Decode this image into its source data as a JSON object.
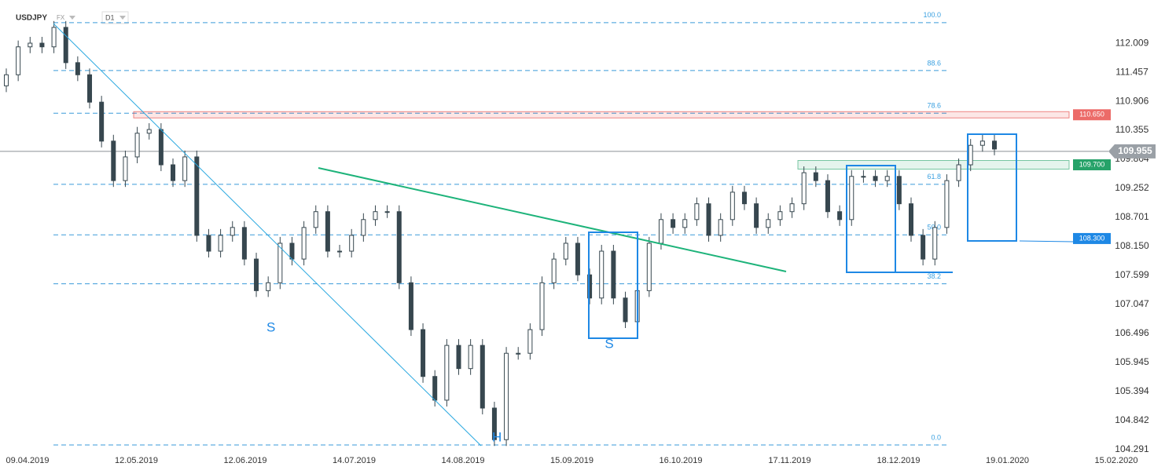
{
  "chart_data": {
    "type": "candlestick",
    "symbol": "USDJPY",
    "market": "FX",
    "interval": "D1",
    "ylim": [
      104.26,
      112.83
    ],
    "yticks": [
      112.009,
      111.457,
      110.906,
      110.355,
      109.804,
      109.252,
      108.701,
      {
        "value": 108.15,
        "label": "108.150"
      },
      107.599,
      107.047,
      106.496,
      105.945,
      105.394,
      104.842,
      104.291
    ],
    "xtick_labels": [
      "09.04.2019",
      "12.05.2019",
      "12.06.2019",
      "14.07.2019",
      "14.08.2019",
      "15.09.2019",
      "16.10.2019",
      "17.11.2019",
      "18.12.2019",
      "19.01.2020",
      "15.02.2020"
    ],
    "color": "#37474f",
    "open": [
      111.2,
      111.41,
      111.94,
      112.01,
      111.94,
      112.31,
      111.64,
      111.41,
      110.89,
      110.15,
      109.4,
      109.85,
      110.3,
      110.37,
      109.7,
      109.4,
      109.85,
      108.36,
      108.06,
      108.36,
      108.51,
      107.91,
      107.31,
      107.46,
      108.21,
      107.91,
      108.51,
      108.81,
      108.06,
      108.06,
      108.36,
      108.66,
      108.81,
      108.81,
      107.46,
      106.57,
      105.68,
      105.23,
      106.27,
      105.83,
      106.27,
      105.08,
      104.48,
      106.12,
      106.12,
      106.57,
      107.46,
      107.91,
      108.21,
      107.61,
      107.17,
      108.06,
      107.17,
      106.72,
      107.31,
      108.21,
      108.66,
      108.51,
      108.66,
      108.96,
      108.36,
      108.66,
      109.18,
      108.96,
      108.51,
      108.66,
      108.81,
      108.96,
      109.55,
      109.4,
      108.81,
      108.66,
      109.48,
      109.48,
      109.4,
      109.48,
      108.96,
      108.36,
      107.91,
      108.51,
      109.4,
      109.7,
      110.07,
      110.15
    ],
    "high": [
      111.53,
      112.06,
      112.13,
      112.13,
      112.43,
      112.43,
      111.76,
      111.53,
      111.01,
      110.27,
      109.97,
      110.42,
      110.49,
      110.49,
      109.82,
      109.97,
      109.97,
      108.48,
      108.48,
      108.63,
      108.63,
      108.03,
      107.58,
      108.33,
      108.33,
      108.63,
      108.93,
      108.93,
      108.18,
      108.48,
      108.78,
      108.93,
      108.93,
      108.93,
      107.58,
      106.69,
      105.8,
      106.39,
      106.39,
      106.39,
      106.39,
      105.2,
      106.24,
      106.24,
      106.69,
      107.58,
      108.03,
      108.33,
      108.33,
      107.73,
      108.18,
      108.18,
      107.29,
      107.43,
      108.33,
      108.78,
      108.78,
      108.78,
      109.08,
      109.08,
      108.78,
      109.3,
      109.3,
      109.08,
      108.78,
      108.93,
      109.08,
      109.67,
      109.67,
      109.52,
      108.93,
      109.6,
      109.6,
      109.6,
      109.6,
      109.6,
      109.08,
      108.48,
      108.63,
      109.52,
      109.82,
      110.19,
      110.27,
      110.27
    ],
    "low": [
      111.08,
      111.29,
      111.82,
      111.82,
      111.82,
      111.52,
      111.29,
      110.77,
      110.03,
      109.28,
      109.28,
      109.73,
      110.18,
      109.58,
      109.28,
      109.28,
      108.24,
      107.94,
      107.94,
      108.24,
      107.79,
      107.19,
      107.19,
      107.34,
      107.79,
      107.79,
      108.39,
      107.94,
      107.94,
      107.94,
      108.24,
      108.54,
      108.69,
      107.34,
      106.45,
      105.56,
      105.11,
      105.11,
      105.71,
      105.71,
      104.96,
      104.36,
      104.36,
      106.0,
      106.0,
      106.45,
      107.34,
      107.79,
      107.49,
      107.05,
      107.05,
      107.05,
      106.6,
      106.6,
      107.19,
      108.09,
      108.39,
      108.39,
      108.54,
      108.24,
      108.24,
      108.54,
      108.84,
      108.39,
      108.39,
      108.54,
      108.69,
      108.84,
      109.28,
      108.69,
      108.54,
      108.54,
      109.36,
      109.28,
      109.28,
      108.84,
      108.24,
      107.79,
      107.79,
      108.39,
      109.28,
      109.58,
      109.95,
      109.88
    ],
    "close": [
      111.41,
      111.94,
      112.01,
      111.94,
      112.31,
      111.64,
      111.41,
      110.89,
      110.15,
      109.4,
      109.85,
      110.3,
      110.37,
      109.7,
      109.4,
      109.85,
      108.36,
      108.06,
      108.36,
      108.51,
      107.91,
      107.31,
      107.46,
      108.21,
      107.91,
      108.51,
      108.81,
      108.06,
      108.06,
      108.36,
      108.66,
      108.81,
      108.81,
      107.46,
      106.57,
      105.68,
      105.23,
      106.27,
      105.83,
      106.27,
      105.08,
      104.48,
      106.12,
      106.12,
      106.57,
      107.46,
      107.91,
      108.21,
      107.61,
      107.17,
      108.06,
      107.17,
      106.72,
      107.31,
      108.21,
      108.66,
      108.51,
      108.66,
      108.96,
      108.36,
      108.66,
      109.18,
      108.96,
      108.51,
      108.66,
      108.81,
      108.96,
      109.55,
      109.4,
      108.81,
      108.66,
      109.48,
      109.48,
      109.4,
      109.48,
      108.96,
      108.36,
      107.91,
      108.51,
      109.4,
      109.7,
      110.07,
      110.15,
      110.0
    ],
    "fib_levels": [
      {
        "value": 112.4,
        "label": "100.0"
      },
      {
        "value": 111.49,
        "label": "88.6"
      },
      {
        "value": 110.68,
        "label": "78.6"
      },
      {
        "value": 109.33,
        "label": "61.8"
      },
      {
        "value": 108.37,
        "label": "50.0"
      },
      {
        "value": 107.44,
        "label": "38.2"
      },
      {
        "value": 104.38,
        "label": "0.0"
      }
    ],
    "current_price": 109.955,
    "levels": [
      {
        "value": 110.65,
        "label": "110.650",
        "color": "#e53935"
      },
      {
        "value": 109.7,
        "label": "109.700",
        "color": "#26a269"
      },
      {
        "value": 108.3,
        "label": "108.300",
        "color": "#1e88e5"
      }
    ],
    "annotations": [
      "S",
      "S",
      "H"
    ]
  }
}
